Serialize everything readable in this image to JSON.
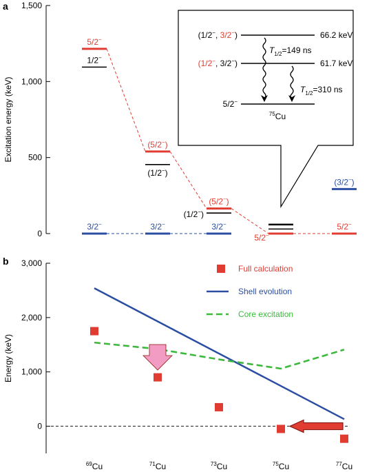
{
  "colors": {
    "red": "#e03c31",
    "blue": "#2b4ea2",
    "green": "#3cb93c",
    "black": "#000000",
    "pink": "#f29bc3",
    "dark_red": "#8b1a14"
  },
  "panel_a": {
    "label": "a",
    "ylabel": "Excitation energy (keV)",
    "yticks": [
      "1,500",
      "1,000",
      "500",
      "0"
    ],
    "inset": {
      "lines": [
        {
          "spin_black": "(1/2",
          "sup1": "−",
          "comma": ", ",
          "spin_red": "3/2",
          "sup2": "−",
          "close": ")",
          "energy": "66.2 keV"
        },
        {
          "spin_red": "(1/2",
          "sup1": "−",
          "comma": ", ",
          "spin_black": "3/2",
          "sup2": "−",
          "close": ")",
          "energy": "61.7 keV"
        }
      ],
      "halflife1": "=149 ns",
      "halflife2": "=310 ns",
      "t_symbol": "T",
      "t_sub": "1/2",
      "ground": "5/2",
      "ground_sup": "−",
      "nucleus_mass": "75",
      "nucleus_sym": "Cu"
    }
  },
  "panel_b": {
    "label": "b",
    "ylabel": "Energy (keV)",
    "yticks": [
      "3,000",
      "2,000",
      "1,000",
      "0"
    ],
    "legend": [
      {
        "name": "Full calculation",
        "color": "#e03c31",
        "marker": "square"
      },
      {
        "name": "Shell evolution",
        "color": "#2b4ea2",
        "marker": "line"
      },
      {
        "name": "Core excitation",
        "color": "#3cb93c",
        "marker": "dashed"
      }
    ]
  },
  "x_labels": [
    {
      "mass": "69",
      "sym": "Cu"
    },
    {
      "mass": "71",
      "sym": "Cu"
    },
    {
      "mass": "73",
      "sym": "Cu"
    },
    {
      "mass": "75",
      "sym": "Cu"
    },
    {
      "mass": "77",
      "sym": "Cu"
    }
  ],
  "chart_data": [
    {
      "type": "level scheme",
      "ylim": [
        0,
        1500
      ],
      "x": [
        69,
        71,
        73,
        75,
        77
      ],
      "levels_5_2": {
        "label": "5/2",
        "sup": "−",
        "values": [
          1215,
          540,
          165,
          0,
          0
        ],
        "labels": [
          "5/2",
          "(5/2",
          "(5/2",
          "5/2",
          "5/2"
        ],
        "closers": [
          "",
          ")",
          ")",
          "",
          ""
        ]
      },
      "levels_3_2": {
        "label": "3/2",
        "sup": "−",
        "values": [
          0,
          0,
          0,
          66.2,
          293
        ],
        "labels": [
          "3/2",
          "3/2",
          "3/2",
          "",
          "(3/2"
        ],
        "closers": [
          "",
          "",
          "",
          "",
          ")"
        ]
      },
      "levels_1_2": {
        "label": "1/2",
        "sup": "−",
        "values": [
          1095,
          454,
          135,
          61.7,
          null
        ],
        "labels": [
          "1/2",
          "(1/2",
          "(1/2",
          "",
          ""
        ],
        "closers": [
          "",
          ")",
          ")",
          "",
          ""
        ]
      }
    },
    {
      "type": "scatter+line",
      "ylim": [
        -500,
        3000
      ],
      "x": [
        69,
        71,
        73,
        75,
        77
      ],
      "series": [
        {
          "name": "Full calculation",
          "values": [
            1750,
            900,
            350,
            -50,
            -230
          ]
        },
        {
          "name": "Shell evolution",
          "x": [
            69,
            77
          ],
          "values": [
            2540,
            130
          ]
        },
        {
          "name": "Core excitation",
          "values": [
            1540,
            1420,
            1230,
            1060,
            1410
          ]
        }
      ],
      "reference_line": 0
    }
  ]
}
